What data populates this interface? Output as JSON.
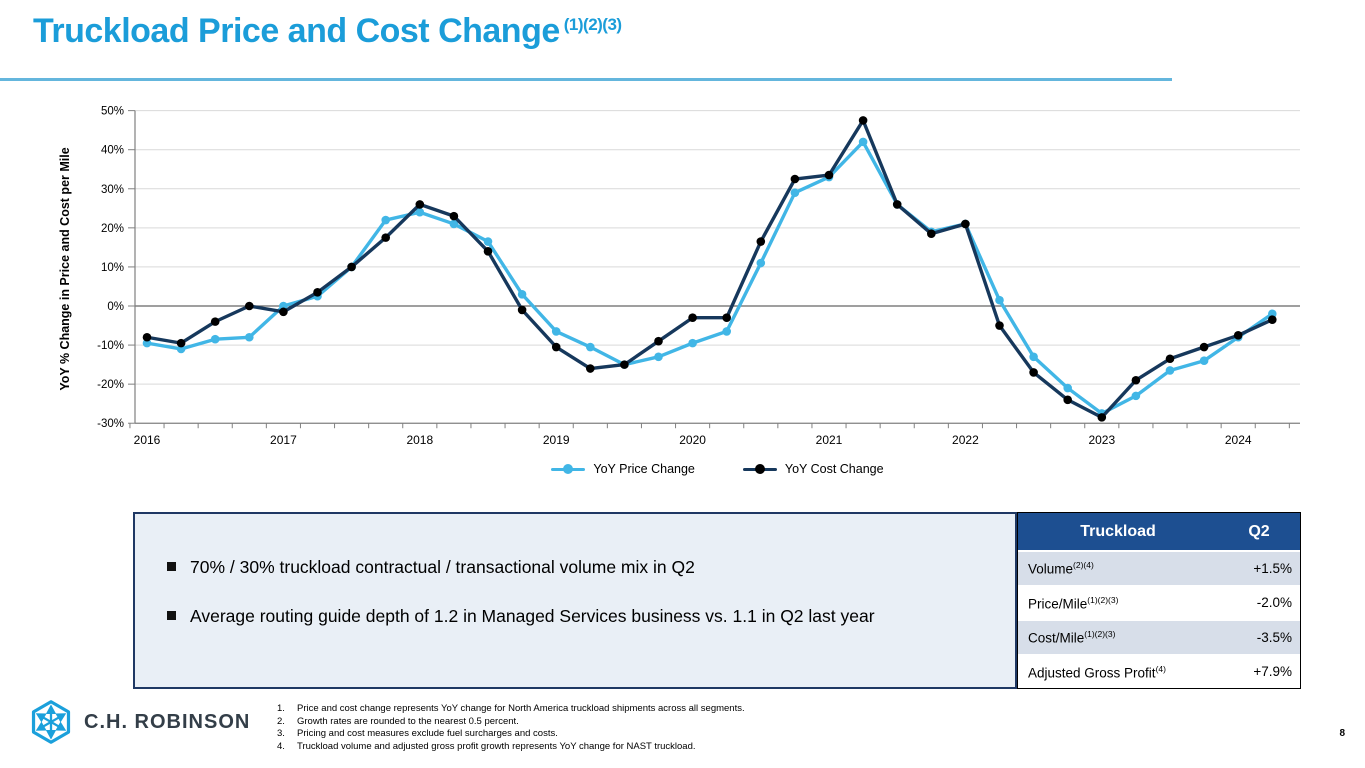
{
  "page": {
    "number": "8"
  },
  "header": {
    "title": "Truckload Price and Cost Change",
    "superscript": "(1)(2)(3)",
    "accent_color": "#1B9DD9"
  },
  "chart_data": {
    "type": "line",
    "title": "",
    "xlabel": "",
    "ylabel": "YoY % Change in Price and Cost per Mile",
    "ylim": [
      -30,
      50
    ],
    "ytick_values": [
      50,
      40,
      30,
      20,
      10,
      0,
      -10,
      -20,
      -30
    ],
    "ytick_labels": [
      "50%",
      "40%",
      "30%",
      "20%",
      "10%",
      "0%",
      "-10%",
      "-20%",
      "-30%"
    ],
    "grid": true,
    "legend_position": "bottom",
    "x": [
      "Q1 2016",
      "Q2 2016",
      "Q3 2016",
      "Q4 2016",
      "Q1 2017",
      "Q2 2017",
      "Q3 2017",
      "Q4 2017",
      "Q1 2018",
      "Q2 2018",
      "Q3 2018",
      "Q4 2018",
      "Q1 2019",
      "Q2 2019",
      "Q3 2019",
      "Q4 2019",
      "Q1 2020",
      "Q2 2020",
      "Q3 2020",
      "Q4 2020",
      "Q1 2021",
      "Q2 2021",
      "Q3 2021",
      "Q4 2021",
      "Q1 2022",
      "Q2 2022",
      "Q3 2022",
      "Q4 2022",
      "Q1 2023",
      "Q2 2023",
      "Q3 2023",
      "Q4 2023",
      "Q1 2024",
      "Q2 2024"
    ],
    "year_labels": [
      "2016",
      "2017",
      "2018",
      "2019",
      "2020",
      "2021",
      "2022",
      "2023",
      "2024"
    ],
    "series": [
      {
        "name": "YoY Price Change",
        "color": "#41B6E6",
        "marker": "#41B6E6",
        "values": [
          -9.5,
          -11,
          -8.5,
          -8,
          0,
          2.5,
          10,
          22,
          24,
          21,
          16.5,
          3,
          -6.5,
          -10.5,
          -15,
          -13,
          -9.5,
          -6.5,
          11,
          29,
          33,
          42,
          26,
          19,
          21,
          1.5,
          -13,
          -21,
          -27.5,
          -23,
          -16.5,
          -14,
          -8,
          -2
        ]
      },
      {
        "name": "YoY Cost Change",
        "color": "#16385C",
        "marker": "#000000",
        "values": [
          -8,
          -9.5,
          -4,
          0,
          -1.5,
          3.5,
          10,
          17.5,
          26,
          23,
          14,
          -1,
          -10.5,
          -16,
          -15,
          -9,
          -3,
          -3,
          16.5,
          32.5,
          33.5,
          47.5,
          26,
          18.5,
          21,
          -5,
          -17,
          -24,
          -28.5,
          -19,
          -13.5,
          -10.5,
          -7.5,
          -3.5
        ]
      }
    ]
  },
  "callout": {
    "items": [
      "70% / 30% truckload contractual / transactional volume mix in Q2",
      "Average routing guide depth of 1.2 in Managed Services business vs. 1.1 in Q2 last year"
    ]
  },
  "table": {
    "header": {
      "title": "Truckload",
      "period": "Q2"
    },
    "header_bg": "#1D4F91",
    "rows": [
      {
        "label": "Volume",
        "sup": "(2)(4)",
        "value": "+1.5%"
      },
      {
        "label": "Price/Mile",
        "sup": "(1)(2)(3)",
        "value": "-2.0%"
      },
      {
        "label": "Cost/Mile",
        "sup": "(1)(2)(3)",
        "value": "-3.5%"
      },
      {
        "label": "Adjusted Gross Profit",
        "sup": "(4)",
        "value": "+7.9%"
      }
    ]
  },
  "footnotes": [
    {
      "num": "1.",
      "text": "Price and cost change represents YoY change for North America truckload shipments across all segments."
    },
    {
      "num": "2.",
      "text": "Growth rates are rounded to the nearest 0.5 percent."
    },
    {
      "num": "3.",
      "text": "Pricing and cost measures exclude fuel surcharges and costs."
    },
    {
      "num": "4.",
      "text": "Truckload volume and adjusted gross profit growth represents YoY change for NAST truckload."
    }
  ],
  "logo": {
    "text": "C.H. ROBINSON"
  }
}
